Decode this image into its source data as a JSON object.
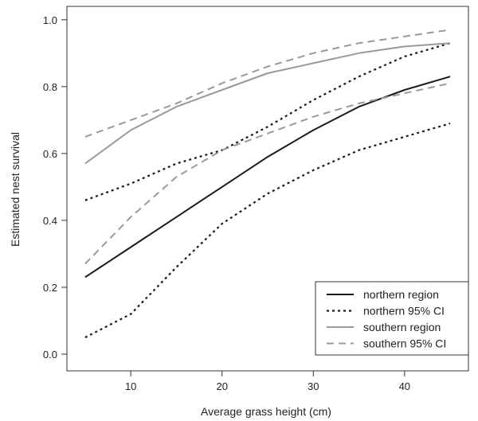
{
  "chart_data": {
    "type": "line",
    "title": "",
    "xlabel": "Average grass height (cm)",
    "ylabel": "Estimated nest survival",
    "xlim": [
      3,
      47
    ],
    "ylim": [
      -0.05,
      1.04
    ],
    "xticks": [
      10,
      20,
      30,
      40
    ],
    "yticks": [
      0.0,
      0.2,
      0.4,
      0.6,
      0.8,
      1.0
    ],
    "ytick_labels": [
      "0.0",
      "0.2",
      "0.4",
      "0.6",
      "0.8",
      "1.0"
    ],
    "legend_position": "bottom-right",
    "grid": false,
    "series": [
      {
        "name": "northern region",
        "color": "#1a1a1a",
        "style": "solid",
        "x": [
          5,
          10,
          15,
          20,
          25,
          30,
          35,
          40,
          45
        ],
        "y": [
          0.23,
          0.32,
          0.41,
          0.5,
          0.59,
          0.67,
          0.74,
          0.79,
          0.83
        ]
      },
      {
        "name": "northern 95% CI",
        "color": "#1a1a1a",
        "style": "dotted",
        "x": [
          5,
          10,
          15,
          20,
          25,
          30,
          35,
          40,
          45
        ],
        "y": [
          0.05,
          0.12,
          0.26,
          0.39,
          0.48,
          0.55,
          0.61,
          0.65,
          0.69
        ]
      },
      {
        "name": "northern 95% CI",
        "color": "#1a1a1a",
        "style": "dotted",
        "show_in_legend": false,
        "x": [
          5,
          10,
          15,
          20,
          25,
          30,
          35,
          40,
          45
        ],
        "y": [
          0.46,
          0.51,
          0.57,
          0.61,
          0.68,
          0.76,
          0.83,
          0.89,
          0.93
        ]
      },
      {
        "name": "southern region",
        "color": "#999999",
        "style": "solid",
        "x": [
          5,
          10,
          15,
          20,
          25,
          30,
          35,
          40,
          45
        ],
        "y": [
          0.57,
          0.67,
          0.74,
          0.79,
          0.84,
          0.87,
          0.9,
          0.92,
          0.93
        ]
      },
      {
        "name": "southern 95% CI",
        "color": "#999999",
        "style": "dashed",
        "x": [
          5,
          10,
          15,
          20,
          25,
          30,
          35,
          40,
          45
        ],
        "y": [
          0.27,
          0.41,
          0.53,
          0.61,
          0.66,
          0.71,
          0.75,
          0.78,
          0.81
        ]
      },
      {
        "name": "southern 95% CI",
        "color": "#999999",
        "style": "dashed",
        "show_in_legend": false,
        "x": [
          5,
          10,
          15,
          20,
          25,
          30,
          35,
          40,
          45
        ],
        "y": [
          0.65,
          0.7,
          0.75,
          0.81,
          0.86,
          0.9,
          0.93,
          0.95,
          0.97
        ]
      }
    ]
  }
}
